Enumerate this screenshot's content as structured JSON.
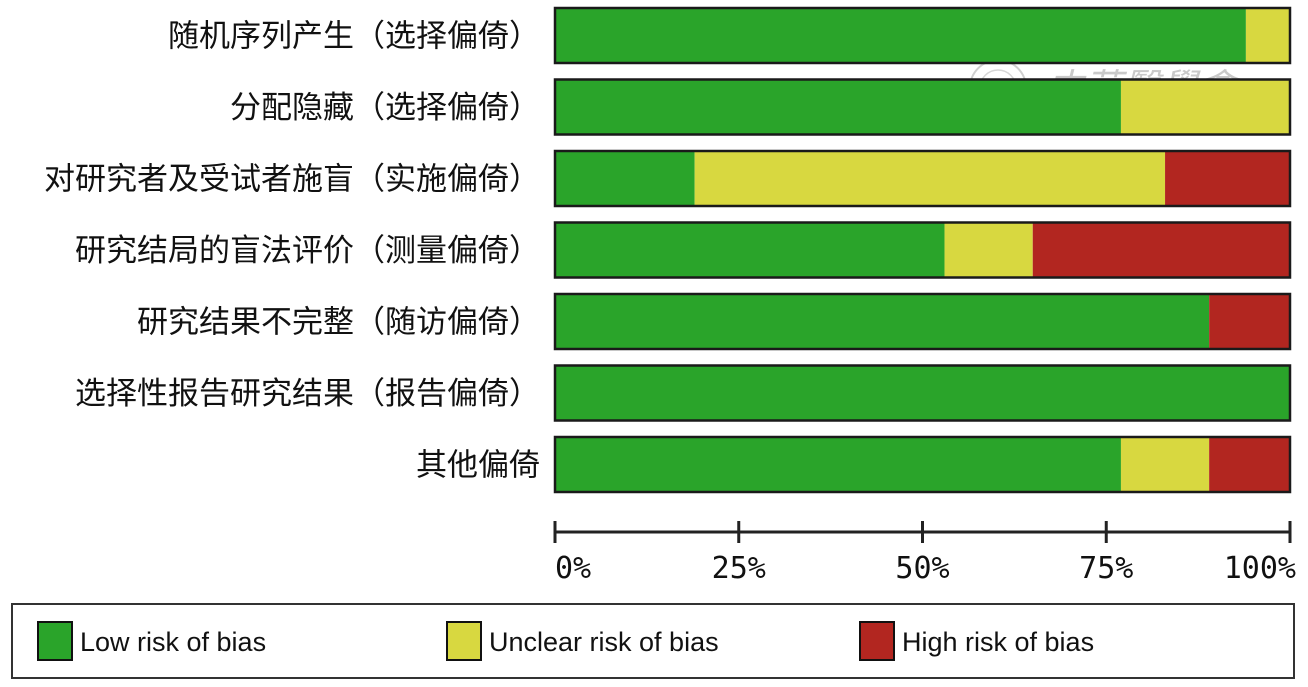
{
  "watermark": {
    "text": "中華醫學會"
  },
  "colors": {
    "low": "#2aa42a",
    "unclear": "#d8d840",
    "high": "#b22620",
    "axis": "#222222",
    "bar_border": "#1a1a1a"
  },
  "legend": {
    "items": [
      {
        "key": "low",
        "label": "Low risk of bias"
      },
      {
        "key": "unclear",
        "label": "Unclear risk of bias"
      },
      {
        "key": "high",
        "label": "High risk of bias"
      }
    ]
  },
  "chart_data": {
    "type": "bar",
    "orientation": "horizontal",
    "stacked": true,
    "categories": [
      "随机序列产生（选择偏倚）",
      "分配隐藏（选择偏倚）",
      "对研究者及受试者施盲（实施偏倚）",
      "研究结局的盲法评价（测量偏倚）",
      "研究结果不完整（随访偏倚）",
      "选择性报告研究结果（报告偏倚）",
      "其他偏倚"
    ],
    "series": [
      {
        "name": "Low risk of bias",
        "key": "low",
        "values": [
          94,
          77,
          19,
          53,
          89,
          100,
          77
        ]
      },
      {
        "name": "Unclear risk of bias",
        "key": "unclear",
        "values": [
          6,
          23,
          64,
          12,
          0,
          0,
          12
        ]
      },
      {
        "name": "High risk of bias",
        "key": "high",
        "values": [
          0,
          0,
          17,
          35,
          11,
          0,
          11
        ]
      }
    ],
    "xticks": [
      "0%",
      "25%",
      "50%",
      "75%",
      "100%"
    ],
    "xlim": [
      0,
      100
    ],
    "legend_position": "bottom",
    "grid": false
  }
}
